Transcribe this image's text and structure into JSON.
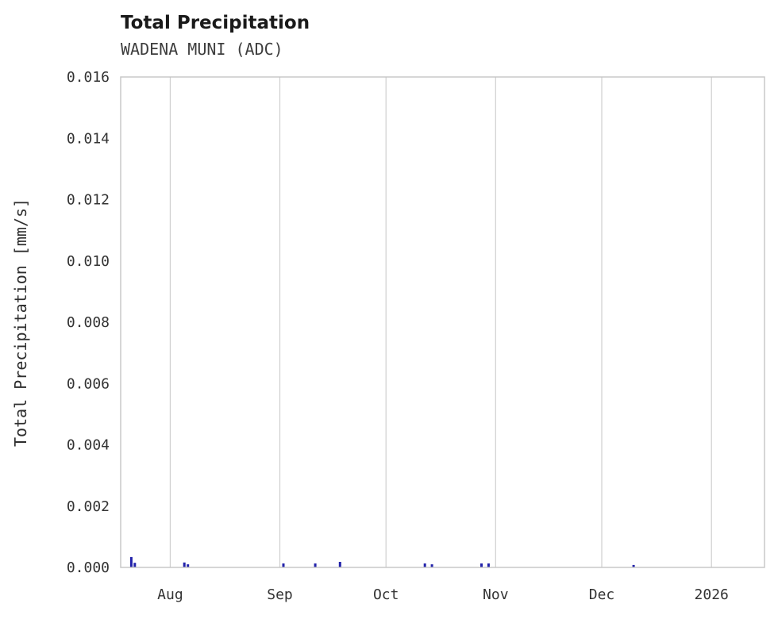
{
  "header": {
    "title": "Total Precipitation",
    "subtitle": "WADENA MUNI (ADC)"
  },
  "chart_data": {
    "type": "bar",
    "title": "Total Precipitation",
    "subtitle": "WADENA MUNI (ADC)",
    "xlabel": "",
    "ylabel": "Total Precipitation [mm/s]",
    "ylim": [
      0,
      0.016
    ],
    "ytick_values": [
      0.0,
      0.002,
      0.004,
      0.006,
      0.008,
      0.01,
      0.012,
      0.014,
      0.016
    ],
    "ytick_labels": [
      "0.000",
      "0.002",
      "0.004",
      "0.006",
      "0.008",
      "0.010",
      "0.012",
      "0.014",
      "0.016"
    ],
    "x_axis": {
      "unit": "days-from-plot-start",
      "start_day": 0,
      "end_day": 182,
      "ticks": [
        {
          "label": "Aug",
          "day": 14
        },
        {
          "label": "Sep",
          "day": 45
        },
        {
          "label": "Oct",
          "day": 75
        },
        {
          "label": "Nov",
          "day": 106
        },
        {
          "label": "Dec",
          "day": 136
        },
        {
          "label": "2026",
          "day": 167
        }
      ]
    },
    "grid": "vertical-only",
    "legend": "none",
    "series": [
      {
        "name": "Total Precipitation",
        "color": "#2222aa",
        "points": [
          {
            "day": 3,
            "value": 0.00034
          },
          {
            "day": 4,
            "value": 0.00015
          },
          {
            "day": 18,
            "value": 0.00016
          },
          {
            "day": 19,
            "value": 0.0001
          },
          {
            "day": 46,
            "value": 0.00013
          },
          {
            "day": 55,
            "value": 0.00013
          },
          {
            "day": 62,
            "value": 0.00018
          },
          {
            "day": 86,
            "value": 0.00013
          },
          {
            "day": 88,
            "value": 0.0001
          },
          {
            "day": 102,
            "value": 0.00013
          },
          {
            "day": 104,
            "value": 0.00013
          },
          {
            "day": 145,
            "value": 8e-05
          }
        ]
      }
    ]
  },
  "colors": {
    "grid": "#cfcfcf",
    "frame": "#c4c4c4",
    "tick_text": "#333333",
    "bar": "#2222aa",
    "background": "#ffffff"
  }
}
